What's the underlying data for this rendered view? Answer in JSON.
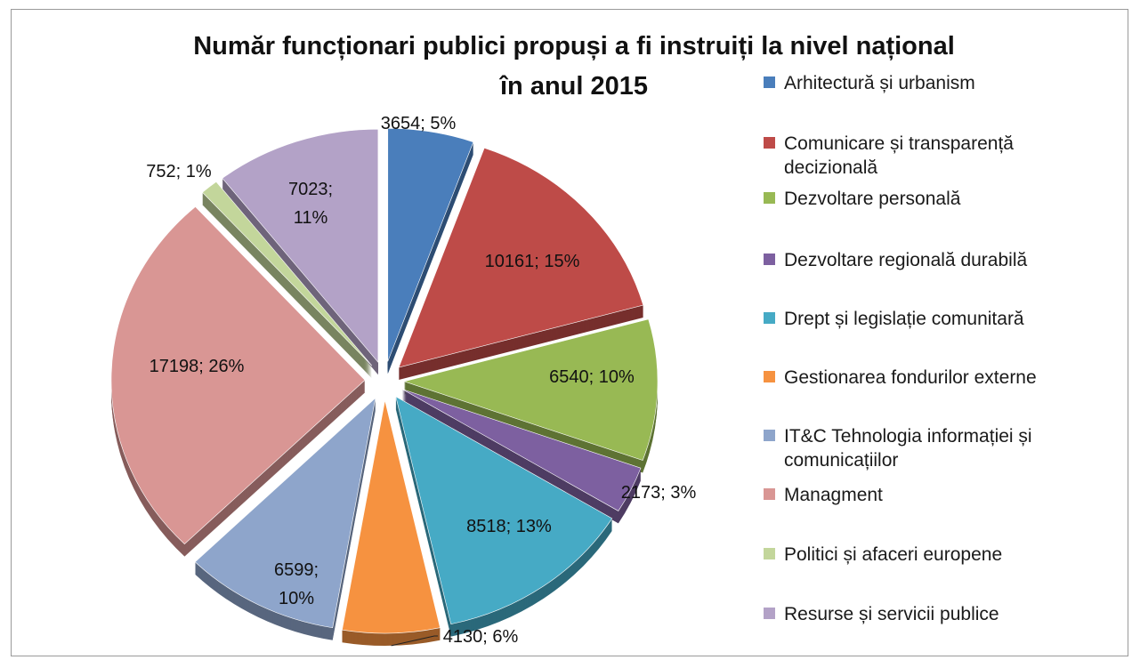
{
  "chart_data": {
    "type": "pie",
    "title": "Număr funcționari publici propuși a fi instruiți la nivel național în anul 2015",
    "title_lines": [
      "Număr funcționari publici propuși a fi instruiți la nivel național",
      "în anul 2015"
    ],
    "legend_position": "right",
    "exploded": true,
    "slices": [
      {
        "name": "Arhitectură și urbanism",
        "value": 3654,
        "percent": 5,
        "label": "3654; 5%",
        "color": "#4A7EBB"
      },
      {
        "name": "Comunicare și transparență decizională",
        "value": 10161,
        "percent": 15,
        "label": "10161; 15%",
        "color": "#BE4B48"
      },
      {
        "name": "Dezvoltare personală",
        "value": 6540,
        "percent": 10,
        "label": "6540; 10%",
        "color": "#98B954"
      },
      {
        "name": "Dezvoltare regională durabilă",
        "value": 2173,
        "percent": 3,
        "label": "2173; 3%",
        "color": "#7D60A0"
      },
      {
        "name": "Drept și legislație comunitară",
        "value": 8518,
        "percent": 13,
        "label": "8518; 13%",
        "color": "#46AAC5"
      },
      {
        "name": "Gestionarea fondurilor externe",
        "value": 4130,
        "percent": 6,
        "label": "4130; 6%",
        "color": "#F69240"
      },
      {
        "name": "IT&C Tehnologia informației și comunicațiilor",
        "value": 6599,
        "percent": 10,
        "label": "6599; 10%",
        "label_lines": [
          "6599;",
          "10%"
        ],
        "color": "#8EA5CB"
      },
      {
        "name": "Managment",
        "value": 17198,
        "percent": 26,
        "label": "17198; 26%",
        "color": "#D99694"
      },
      {
        "name": "Politici și afaceri europene",
        "value": 752,
        "percent": 1,
        "label": "752; 1%",
        "color": "#C3D69B"
      },
      {
        "name": "Resurse și servicii publice",
        "value": 7023,
        "percent": 11,
        "label": "7023; 11%",
        "label_lines": [
          "7023;",
          "11%"
        ],
        "color": "#B3A2C7"
      }
    ]
  },
  "legend": {
    "items": [
      {
        "lines": [
          "Arhitectură și urbanism"
        ],
        "color": "#4A7EBB"
      },
      {
        "lines": [
          "Comunicare și transparență",
          "decizională"
        ],
        "color": "#BE4B48"
      },
      {
        "lines": [
          "Dezvoltare personală"
        ],
        "color": "#98B954"
      },
      {
        "lines": [
          "Dezvoltare regională durabilă"
        ],
        "color": "#7D60A0"
      },
      {
        "lines": [
          "Drept și legislație comunitară"
        ],
        "color": "#46AAC5"
      },
      {
        "lines": [
          "Gestionarea fondurilor externe"
        ],
        "color": "#F69240"
      },
      {
        "lines": [
          "IT&C Tehnologia informației și",
          "comunicațiilor"
        ],
        "color": "#8EA5CB"
      },
      {
        "lines": [
          "Managment"
        ],
        "color": "#D99694"
      },
      {
        "lines": [
          "Politici și afaceri europene"
        ],
        "color": "#C3D69B"
      },
      {
        "lines": [
          "Resurse și servicii publice"
        ],
        "color": "#B3A2C7"
      }
    ]
  }
}
